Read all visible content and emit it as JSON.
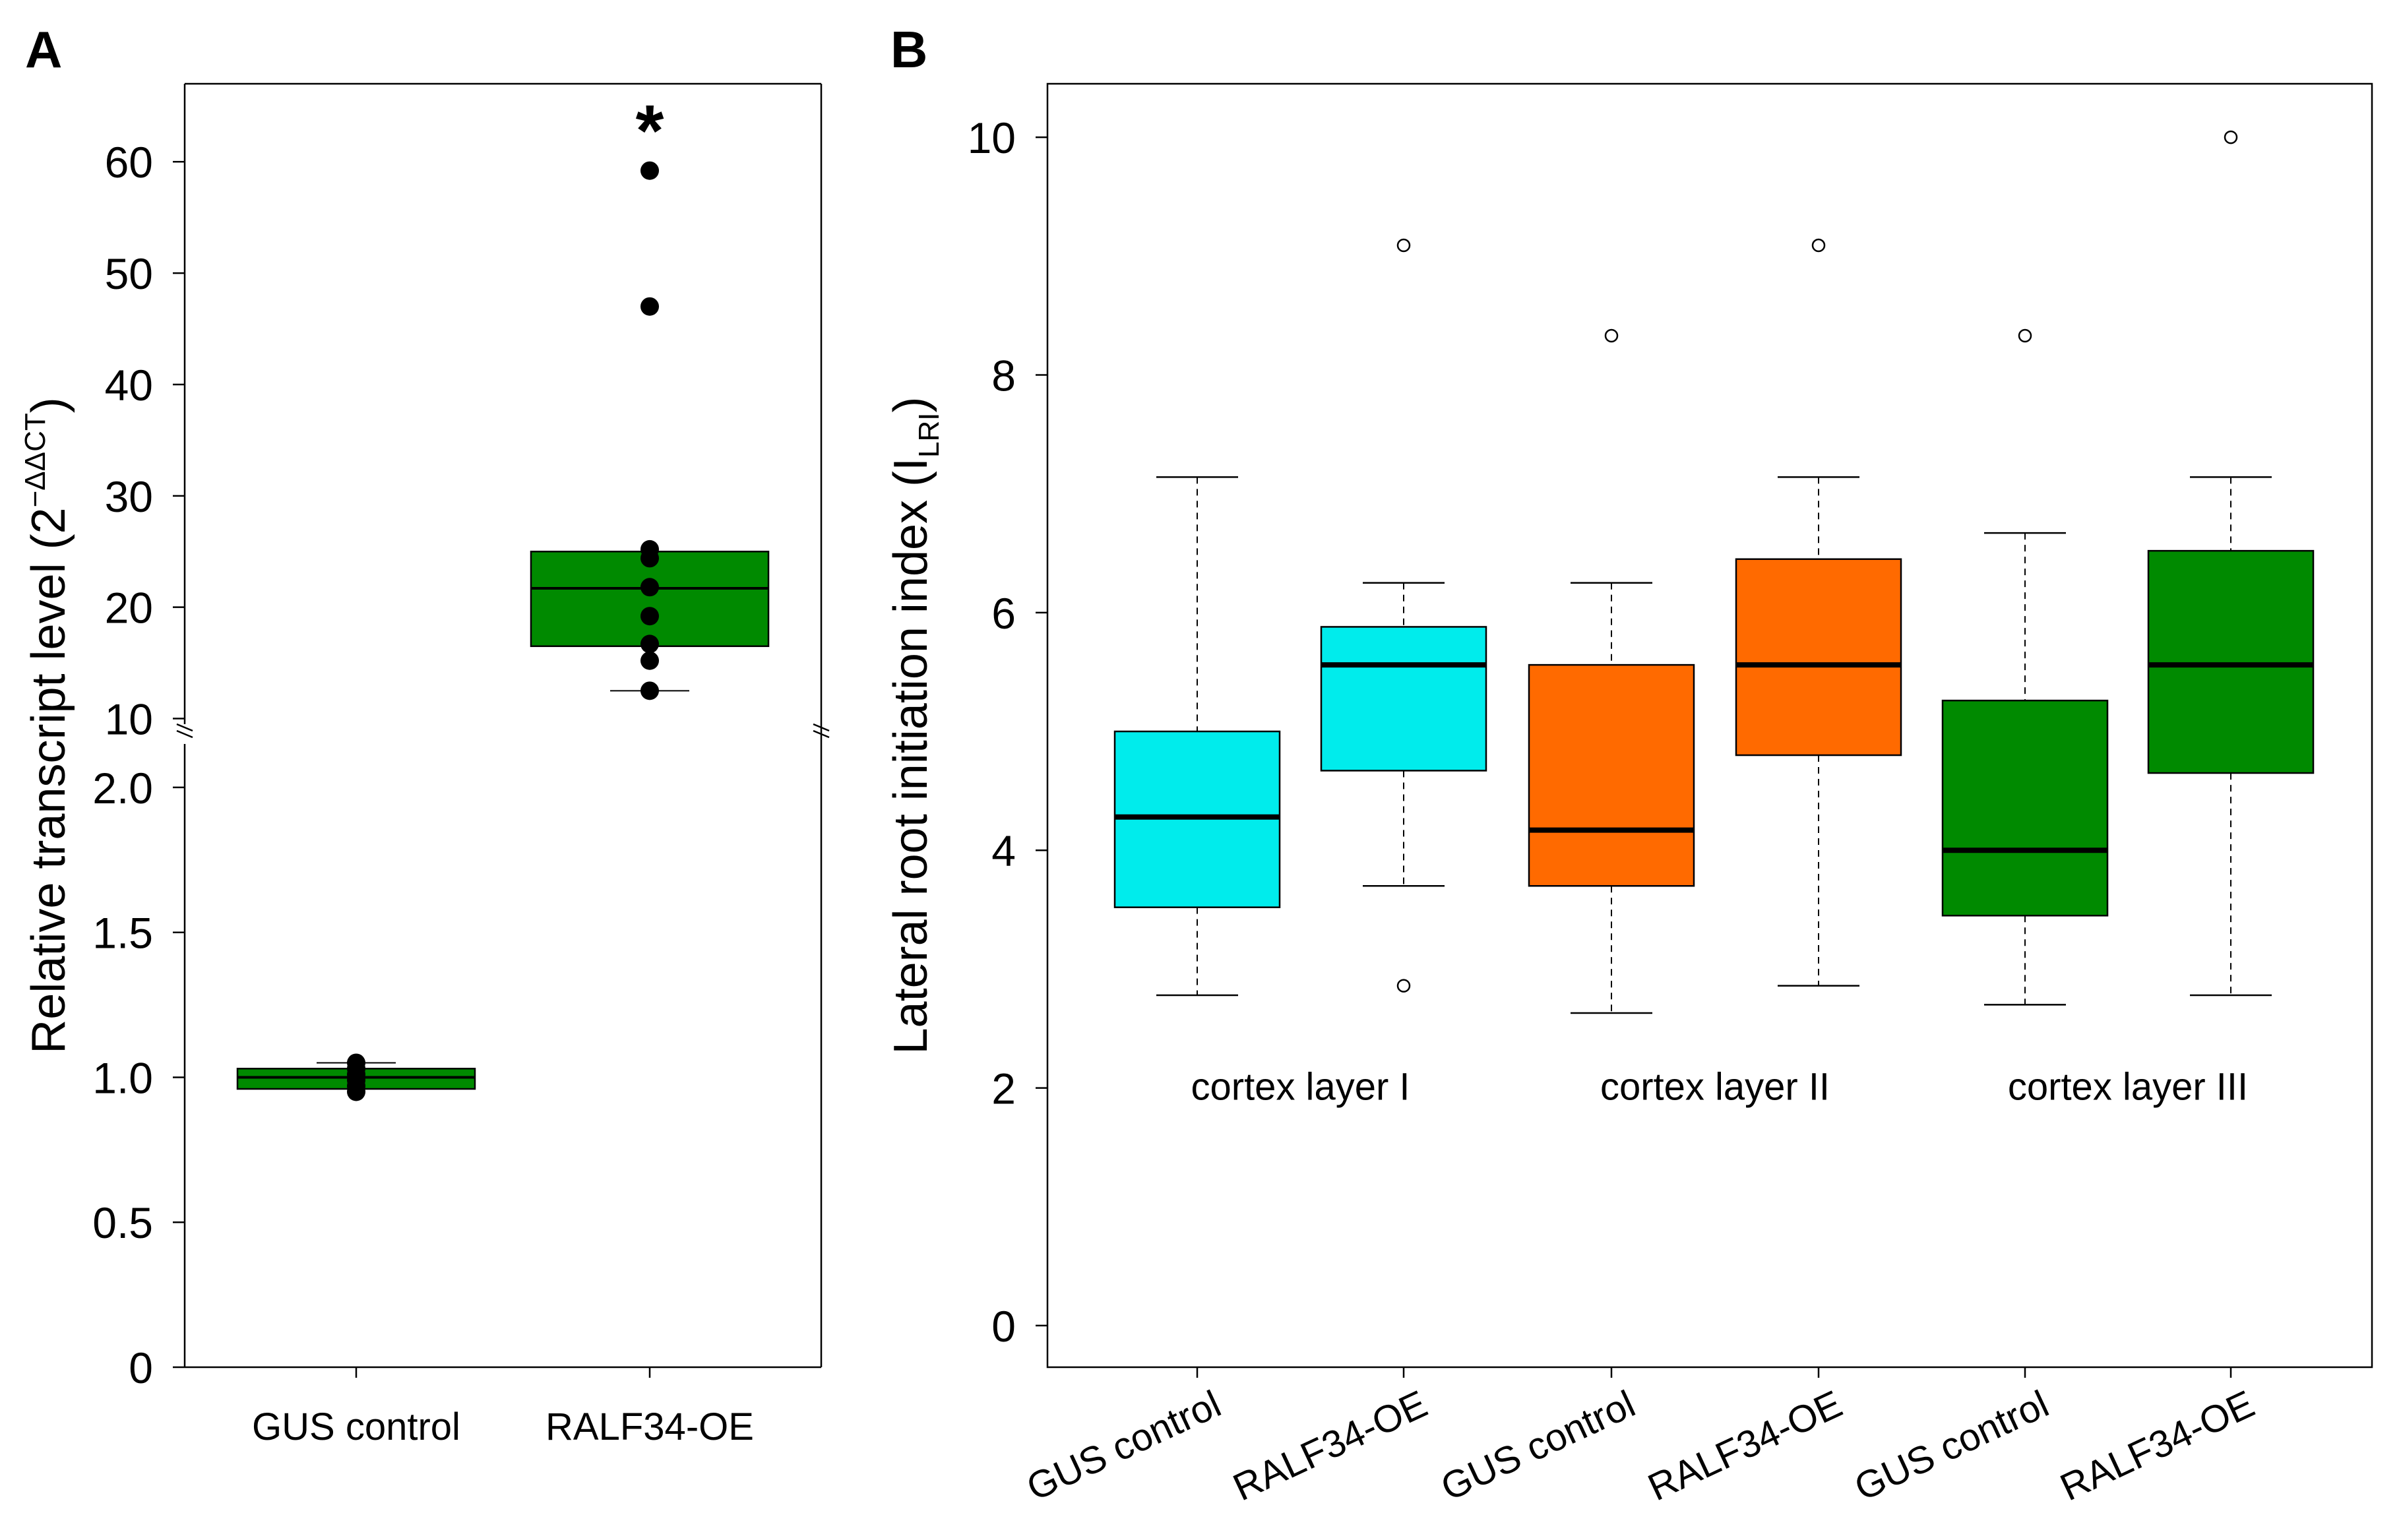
{
  "panels": {
    "a": {
      "letter": "A"
    },
    "b": {
      "letter": "B"
    }
  },
  "colors": {
    "cyan": "#00ecec",
    "orange": "#ff6a00",
    "green": "#008a00",
    "black": "#000000"
  },
  "chart_data": [
    {
      "id": "A",
      "type": "boxplot",
      "title": "",
      "ylabel_main": "Relative transcript level (2",
      "ylabel_sup": "−ΔΔCT",
      "ylabel_close": ")",
      "categories": [
        "GUS control",
        "RALF34-OE"
      ],
      "axis_break": true,
      "lower_axis": {
        "range": [
          0,
          2.15
        ],
        "ticks": [
          0,
          0.5,
          1.0,
          1.5,
          2.0
        ],
        "tick_labels": [
          "0",
          "0.5",
          "1.0",
          "1.5",
          "2.0"
        ]
      },
      "upper_axis": {
        "range": [
          9.5,
          67
        ],
        "ticks": [
          10,
          20,
          30,
          40,
          50,
          60
        ],
        "tick_labels": [
          "10",
          "20",
          "30",
          "40",
          "50",
          "60"
        ]
      },
      "boxes": [
        {
          "category": "GUS control",
          "color": "green",
          "q1": 0.96,
          "median": 1.0,
          "q3": 1.03,
          "whisker_low": 0.96,
          "whisker_high": 1.05,
          "points": [
            0.95,
            0.97,
            0.99,
            1.01,
            1.03,
            1.05
          ]
        },
        {
          "category": "RALF34-OE",
          "color": "green",
          "q1": 16.5,
          "median": 21.7,
          "q3": 25.0,
          "whisker_low": 12.5,
          "whisker_high": 25.0,
          "points": [
            12.5,
            15.2,
            16.7,
            19.2,
            21.8,
            24.4,
            25.2,
            47.0,
            59.2
          ]
        }
      ],
      "annotations": [
        {
          "category": "RALF34-OE",
          "text": "*",
          "y": 63.5
        }
      ]
    },
    {
      "id": "B",
      "type": "boxplot",
      "title": "",
      "ylabel_main": "Lateral root initiation index (I",
      "ylabel_sub": "LRI",
      "ylabel_close": ")",
      "ylim": [
        -0.35,
        10.45
      ],
      "yticks": [
        0,
        2,
        4,
        6,
        8,
        10
      ],
      "categories": [
        "GUS control",
        "RALF34-OE",
        "GUS control",
        "RALF34-OE",
        "GUS control",
        "RALF34-OE"
      ],
      "groups": [
        "cortex layer I",
        "cortex layer II",
        "cortex layer III"
      ],
      "group_label_y": 1.9,
      "boxes": [
        {
          "group": "cortex layer I",
          "category": "GUS control",
          "color": "cyan",
          "whisker_low": 2.78,
          "q1": 3.52,
          "median": 4.28,
          "q3": 5.0,
          "whisker_high": 7.14,
          "outliers": []
        },
        {
          "group": "cortex layer I",
          "category": "RALF34-OE",
          "color": "cyan",
          "whisker_low": 3.7,
          "q1": 4.67,
          "median": 5.56,
          "q3": 5.88,
          "whisker_high": 6.25,
          "outliers": [
            9.09,
            2.86
          ]
        },
        {
          "group": "cortex layer II",
          "category": "GUS control",
          "color": "orange",
          "whisker_low": 2.63,
          "q1": 3.7,
          "median": 4.17,
          "q3": 5.56,
          "whisker_high": 6.25,
          "outliers": [
            8.33
          ]
        },
        {
          "group": "cortex layer II",
          "category": "RALF34-OE",
          "color": "orange",
          "whisker_low": 2.86,
          "q1": 4.8,
          "median": 5.56,
          "q3": 6.45,
          "whisker_high": 7.14,
          "outliers": [
            9.09
          ]
        },
        {
          "group": "cortex layer III",
          "category": "GUS control",
          "color": "green",
          "whisker_low": 2.7,
          "q1": 3.45,
          "median": 4.0,
          "q3": 5.26,
          "whisker_high": 6.67,
          "outliers": [
            8.33
          ]
        },
        {
          "group": "cortex layer III",
          "category": "RALF34-OE",
          "color": "green",
          "whisker_low": 2.78,
          "q1": 4.65,
          "median": 5.56,
          "q3": 6.52,
          "whisker_high": 7.14,
          "outliers": [
            10.0
          ]
        }
      ]
    }
  ]
}
